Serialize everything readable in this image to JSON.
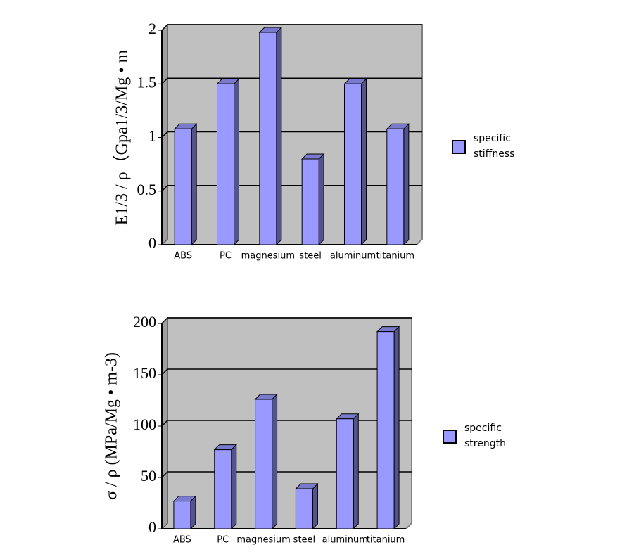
{
  "chart_data": [
    {
      "type": "bar",
      "y_label": "E1/3 / ρ（Gpa1/3/Mg • m",
      "categories": [
        "ABS",
        "PC",
        "magnesium",
        "steel",
        "aluminum",
        "titanium"
      ],
      "series": [
        {
          "name": "specific stiffness",
          "color": "#9999ff",
          "values": [
            1.08,
            1.5,
            1.98,
            0.8,
            1.5,
            1.08
          ]
        }
      ],
      "ylim": [
        0,
        2
      ],
      "yticks": [
        0,
        0.5,
        1,
        1.5,
        2
      ],
      "grid": true,
      "legend": "right"
    },
    {
      "type": "bar",
      "y_label": "σ / ρ (MPa/Mg • m-3)",
      "categories": [
        "ABS",
        "PC",
        "magnesium",
        "steel",
        "aluminum",
        "titanium"
      ],
      "series": [
        {
          "name": "specific strength",
          "color": "#9999ff",
          "values": [
            27,
            77,
            126,
            39,
            107,
            192
          ]
        }
      ],
      "ylim": [
        0,
        200
      ],
      "yticks": [
        0,
        50,
        100,
        150,
        200
      ],
      "grid": true,
      "legend": "right"
    }
  ]
}
